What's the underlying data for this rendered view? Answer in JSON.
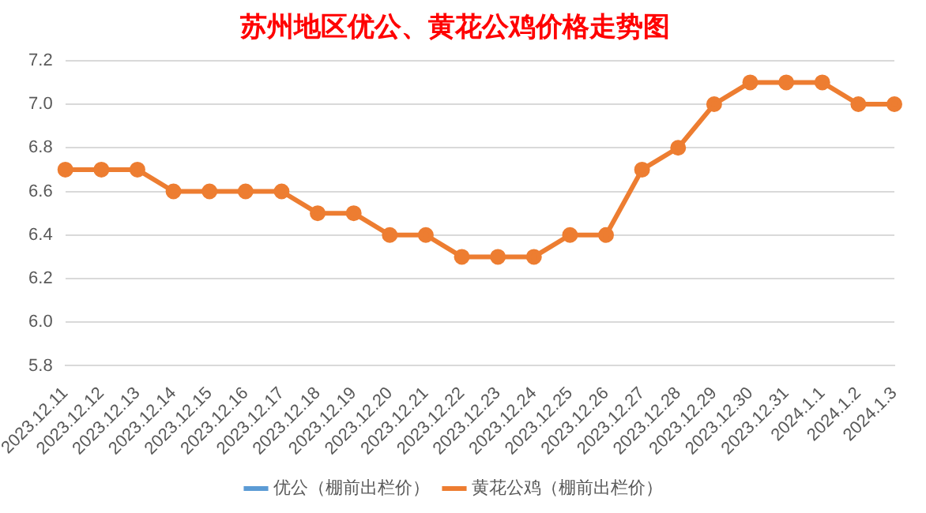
{
  "chart_data": {
    "type": "line",
    "title": "苏州地区优公、黄花公鸡价格走势图",
    "categories": [
      "2023.12.11",
      "2023.12.12",
      "2023.12.13",
      "2023.12.14",
      "2023.12.15",
      "2023.12.16",
      "2023.12.17",
      "2023.12.18",
      "2023.12.19",
      "2023.12.20",
      "2023.12.21",
      "2023.12.22",
      "2023.12.23",
      "2023.12.24",
      "2023.12.25",
      "2023.12.26",
      "2023.12.27",
      "2023.12.28",
      "2023.12.29",
      "2023.12.30",
      "2023.12.31",
      "2024.1.1",
      "2024.1.2",
      "2024.1.3"
    ],
    "series": [
      {
        "name": "优公（棚前出栏价）",
        "color": "#5b9bd5",
        "values": [
          null,
          null,
          null,
          null,
          null,
          null,
          null,
          null,
          null,
          null,
          null,
          null,
          null,
          null,
          null,
          null,
          null,
          null,
          null,
          null,
          null,
          null,
          null,
          null
        ]
      },
      {
        "name": "黄花公鸡（棚前出栏价）",
        "color": "#ed7d31",
        "values": [
          6.7,
          6.7,
          6.7,
          6.6,
          6.6,
          6.6,
          6.6,
          6.5,
          6.5,
          6.4,
          6.4,
          6.3,
          6.3,
          6.3,
          6.4,
          6.4,
          6.7,
          6.8,
          7.0,
          7.1,
          7.1,
          7.1,
          7.0,
          7.0
        ]
      }
    ],
    "ylim": [
      5.8,
      7.2
    ],
    "yticks": [
      {
        "value": 5.8,
        "label": "5.8"
      },
      {
        "value": 6.0,
        "label": "6.0"
      },
      {
        "value": 6.2,
        "label": "6.2"
      },
      {
        "value": 6.4,
        "label": "6.4"
      },
      {
        "value": 6.6,
        "label": "6.6"
      },
      {
        "value": 6.8,
        "label": "6.8"
      },
      {
        "value": 7.0,
        "label": "7.0"
      },
      {
        "value": 7.2,
        "label": "7.2"
      }
    ],
    "grid": "y",
    "legend": "bottom",
    "marker": "circle",
    "line_style": "solid"
  }
}
